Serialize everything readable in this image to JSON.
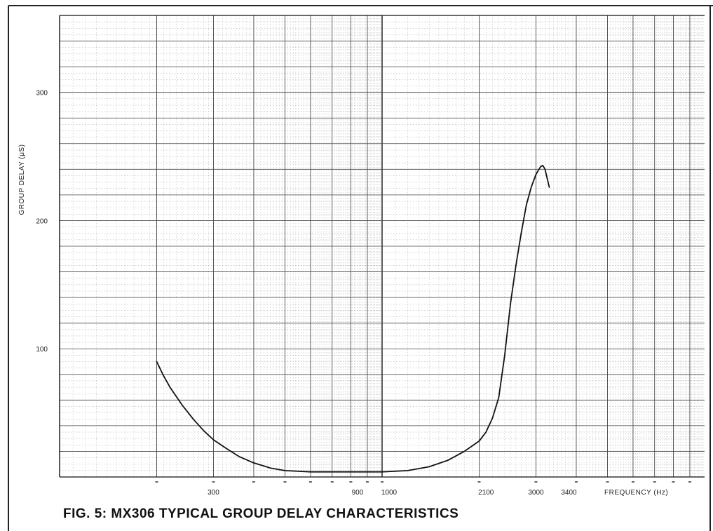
{
  "figure": {
    "caption": "FIG. 5: MX306 TYPICAL GROUP DELAY CHARACTERISTICS"
  },
  "chart_data": {
    "type": "line",
    "title": "FIG. 5: MX306 TYPICAL GROUP DELAY CHARACTERISTICS",
    "xlabel": "FREQUENCY (Hz)",
    "ylabel": "GROUP DELAY (μS)",
    "x_scale": "log",
    "xlim": [
      100,
      10000
    ],
    "ylim": [
      0,
      360
    ],
    "grid": true,
    "x_tick_labels": [
      "300",
      "900",
      "1000",
      "2100",
      "3000",
      "3400"
    ],
    "x_ticks": [
      300,
      900,
      1000,
      2100,
      3000,
      3400
    ],
    "y_ticks": [
      100,
      200,
      300
    ],
    "y_tick_labels": [
      "100",
      "200",
      "300"
    ],
    "series": [
      {
        "color": "#111111",
        "x": [
          200,
          210,
          220,
          240,
          260,
          280,
          300,
          330,
          360,
          400,
          450,
          500,
          600,
          700,
          800,
          900,
          1000,
          1200,
          1400,
          1600,
          1800,
          2000,
          2100,
          2200,
          2300,
          2400,
          2500,
          2600,
          2700,
          2800,
          2900,
          3000,
          3100,
          3150,
          3200,
          3300
        ],
        "y": [
          90,
          79,
          70,
          56,
          45,
          36,
          29,
          22,
          16,
          11,
          7,
          5,
          4,
          4,
          4,
          4,
          4,
          5,
          8,
          13,
          20,
          28,
          35,
          46,
          62,
          95,
          135,
          165,
          190,
          212,
          226,
          236,
          242,
          243,
          240,
          226
        ]
      }
    ]
  }
}
